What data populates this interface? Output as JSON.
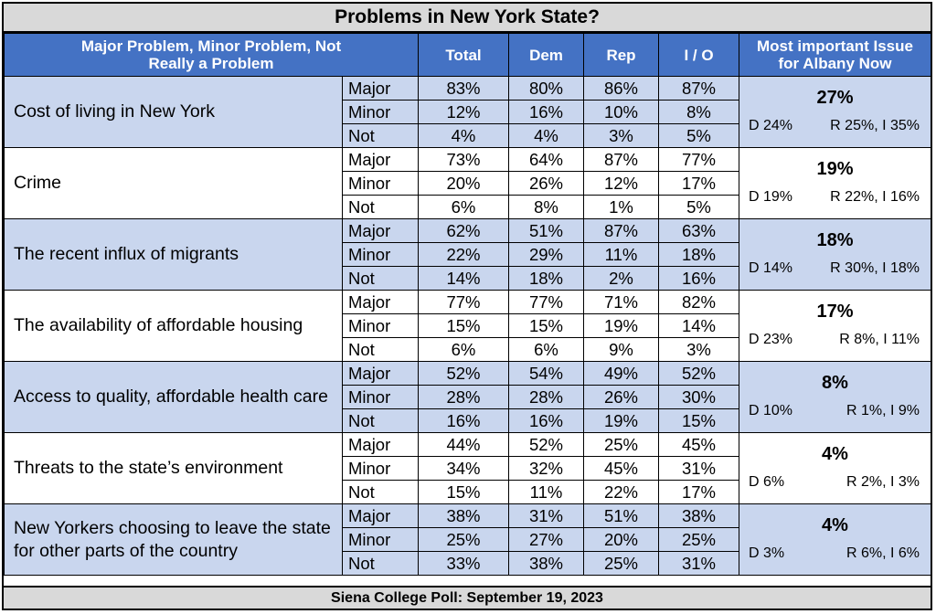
{
  "title": "Problems in New York State?",
  "footer": "Siena College Poll: September 19, 2023",
  "colors": {
    "header_blue": "#4472c4",
    "row_blue": "#c9d6ee",
    "band_gray": "#d9d9d9"
  },
  "chart_data": {
    "type": "table",
    "headers": {
      "question_col": "Major Problem, Minor Problem, Not Really a Problem",
      "total": "Total",
      "dem": "Dem",
      "rep": "Rep",
      "io": "I / O",
      "important": "Most important Issue for Albany Now"
    },
    "rows": [
      {
        "question": "Cost of living in New York",
        "levels": [
          {
            "label": "Major",
            "total": "83%",
            "dem": "80%",
            "rep": "86%",
            "io": "87%"
          },
          {
            "label": "Minor",
            "total": "12%",
            "dem": "16%",
            "rep": "10%",
            "io": "8%"
          },
          {
            "label": "Not",
            "total": "4%",
            "dem": "4%",
            "rep": "3%",
            "io": "5%"
          }
        ],
        "important": {
          "pct": "27%",
          "d": "D 24%",
          "ri": "R 25%, I 35%"
        }
      },
      {
        "question": "Crime",
        "levels": [
          {
            "label": "Major",
            "total": "73%",
            "dem": "64%",
            "rep": "87%",
            "io": "77%"
          },
          {
            "label": "Minor",
            "total": "20%",
            "dem": "26%",
            "rep": "12%",
            "io": "17%"
          },
          {
            "label": "Not",
            "total": "6%",
            "dem": "8%",
            "rep": "1%",
            "io": "5%"
          }
        ],
        "important": {
          "pct": "19%",
          "d": "D 19%",
          "ri": "R 22%, I 16%"
        }
      },
      {
        "question": "The recent influx of migrants",
        "levels": [
          {
            "label": "Major",
            "total": "62%",
            "dem": "51%",
            "rep": "87%",
            "io": "63%"
          },
          {
            "label": "Minor",
            "total": "22%",
            "dem": "29%",
            "rep": "11%",
            "io": "18%"
          },
          {
            "label": "Not",
            "total": "14%",
            "dem": "18%",
            "rep": "2%",
            "io": "16%"
          }
        ],
        "important": {
          "pct": "18%",
          "d": "D 14%",
          "ri": "R 30%, I 18%"
        }
      },
      {
        "question": "The availability of affordable housing",
        "levels": [
          {
            "label": "Major",
            "total": "77%",
            "dem": "77%",
            "rep": "71%",
            "io": "82%"
          },
          {
            "label": "Minor",
            "total": "15%",
            "dem": "15%",
            "rep": "19%",
            "io": "14%"
          },
          {
            "label": "Not",
            "total": "6%",
            "dem": "6%",
            "rep": "9%",
            "io": "3%"
          }
        ],
        "important": {
          "pct": "17%",
          "d": "D 23%",
          "ri": "R 8%, I 11%"
        }
      },
      {
        "question": "Access to quality, affordable health care",
        "levels": [
          {
            "label": "Major",
            "total": "52%",
            "dem": "54%",
            "rep": "49%",
            "io": "52%"
          },
          {
            "label": "Minor",
            "total": "28%",
            "dem": "28%",
            "rep": "26%",
            "io": "30%"
          },
          {
            "label": "Not",
            "total": "16%",
            "dem": "16%",
            "rep": "19%",
            "io": "15%"
          }
        ],
        "important": {
          "pct": "8%",
          "d": "D 10%",
          "ri": "R 1%, I 9%"
        }
      },
      {
        "question": "Threats to the state’s environment",
        "levels": [
          {
            "label": "Major",
            "total": "44%",
            "dem": "52%",
            "rep": "25%",
            "io": "45%"
          },
          {
            "label": "Minor",
            "total": "34%",
            "dem": "32%",
            "rep": "45%",
            "io": "31%"
          },
          {
            "label": "Not",
            "total": "15%",
            "dem": "11%",
            "rep": "22%",
            "io": "17%"
          }
        ],
        "important": {
          "pct": "4%",
          "d": "D 6%",
          "ri": "R 2%, I 3%"
        }
      },
      {
        "question": "New Yorkers choosing to leave the state for other parts of the country",
        "levels": [
          {
            "label": "Major",
            "total": "38%",
            "dem": "31%",
            "rep": "51%",
            "io": "38%"
          },
          {
            "label": "Minor",
            "total": "25%",
            "dem": "27%",
            "rep": "20%",
            "io": "25%"
          },
          {
            "label": "Not",
            "total": "33%",
            "dem": "38%",
            "rep": "25%",
            "io": "31%"
          }
        ],
        "important": {
          "pct": "4%",
          "d": "D 3%",
          "ri": "R 6%, I 6%"
        }
      }
    ]
  }
}
